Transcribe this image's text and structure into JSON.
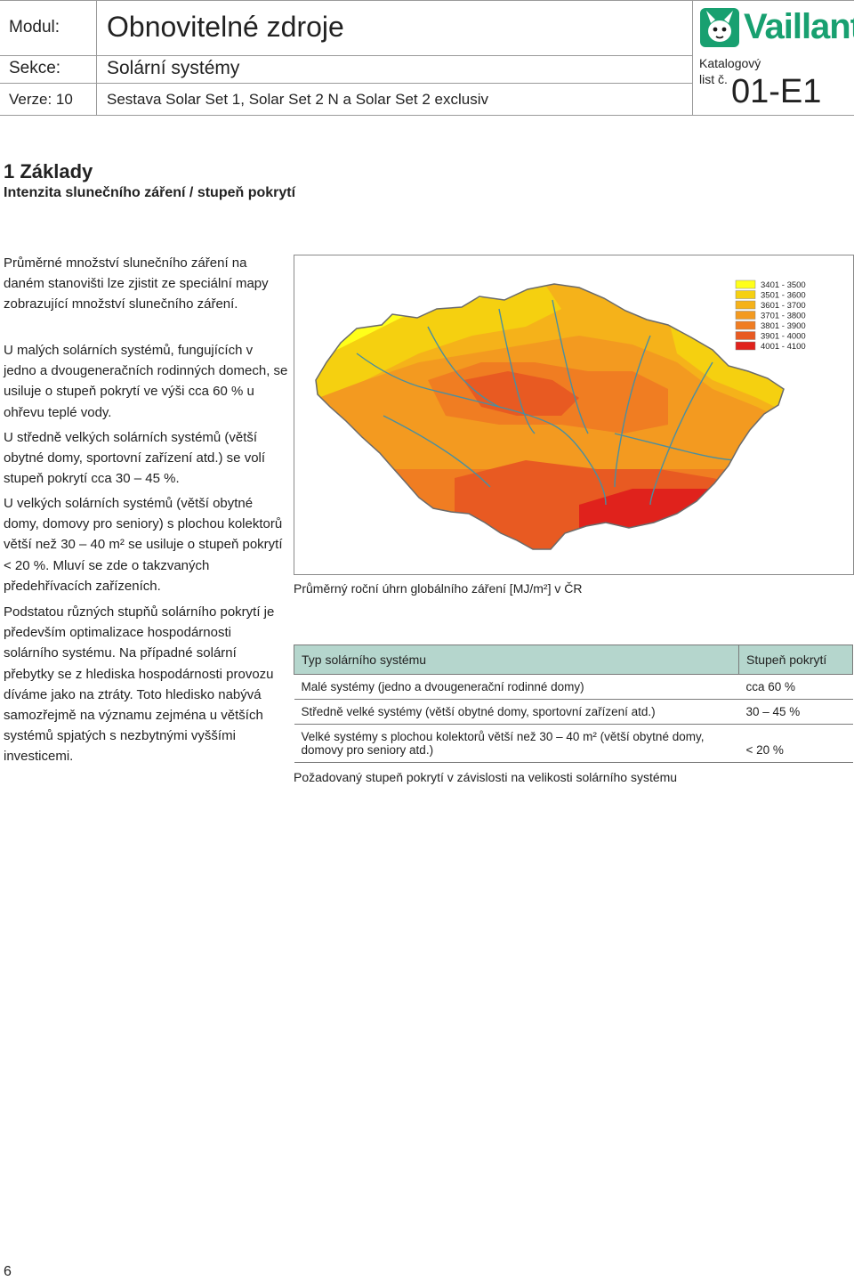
{
  "header": {
    "modul_label": "Modul:",
    "modul_value": "Obnovitelné zdroje",
    "sekce_label": "Sekce:",
    "sekce_value": "Solární systémy",
    "verze_label": "Verze: 10",
    "verze_value": "Sestava Solar Set 1, Solar Set 2 N a Solar Set 2 exclusiv",
    "brand": "Vaillant",
    "catalog_label_1": "Katalogový",
    "catalog_label_2": "list č.",
    "sheet_number": "01-E1",
    "brand_color": "#18a070"
  },
  "section": {
    "title": "1 Základy",
    "subtitle": "Intenzita slunečního záření / stupeň pokrytí"
  },
  "body": {
    "p1": "Průměrné množství slunečního záření na daném stanovišti lze zjistit ze speciální mapy zobrazující množství slunečního záření.",
    "p2": "U malých solárních systémů, fungujících v jedno a dvougeneračních rodinných domech, se usiluje o stupeň pokrytí ve výši cca 60 % u ohřevu teplé vody.",
    "p3": "U středně velkých solárních systémů (větší obytné domy, sportovní zařízení atd.) se volí stupeň pokrytí cca 30 – 45 %.",
    "p4": "U velkých solárních systémů (větší obytné domy, domovy pro seniory) s plochou kolektorů větší než 30 – 40 m² se usiluje o stupeň pokrytí < 20 %. Mluví se zde o takzvaných předehřívacích zařízeních.",
    "p5": "Podstatou různých stupňů solárního pokrytí je především optimalizace hospodárnosti solárního systému. Na případné solární přebytky se z hlediska hospodárnosti provozu díváme jako na ztráty. Toto hledisko nabývá samozřejmě na významu zejména u větších systémů spjatých s nezbytnými vyššími investicemi."
  },
  "map": {
    "caption": "Průměrný roční úhrn globálního záření [MJ/m²] v ČR",
    "legend": [
      {
        "label": "3401 - 3500",
        "color": "#ffff1a"
      },
      {
        "label": "3501 - 3600",
        "color": "#f5d010"
      },
      {
        "label": "3601 - 3700",
        "color": "#f5b21a"
      },
      {
        "label": "3701 - 3800",
        "color": "#f39a20"
      },
      {
        "label": "3801 - 3900",
        "color": "#f07d22"
      },
      {
        "label": "3901 - 4000",
        "color": "#e85a22"
      },
      {
        "label": "4001 - 4100",
        "color": "#e0221c"
      }
    ],
    "river_color": "#4a8fa0"
  },
  "table": {
    "col1_header": "Typ solárního systému",
    "col2_header": "Stupeň pokrytí",
    "rows": [
      {
        "type": "Malé systémy (jedno a dvougenerační rodinné domy)",
        "coverage": "cca 60 %"
      },
      {
        "type": "Středně velké systémy (větší obytné domy, sportovní zařízení atd.)",
        "coverage": "30 – 45 %"
      },
      {
        "type": "Velké systémy s plochou kolektorů větší než 30 – 40 m² (větší obytné domy, domovy pro seniory atd.)",
        "coverage": "< 20 %"
      }
    ],
    "caption": "Požadovaný stupeň pokrytí v závislosti na velikosti solárního systému",
    "header_color": "#b5d6cd"
  },
  "page_number": "6"
}
